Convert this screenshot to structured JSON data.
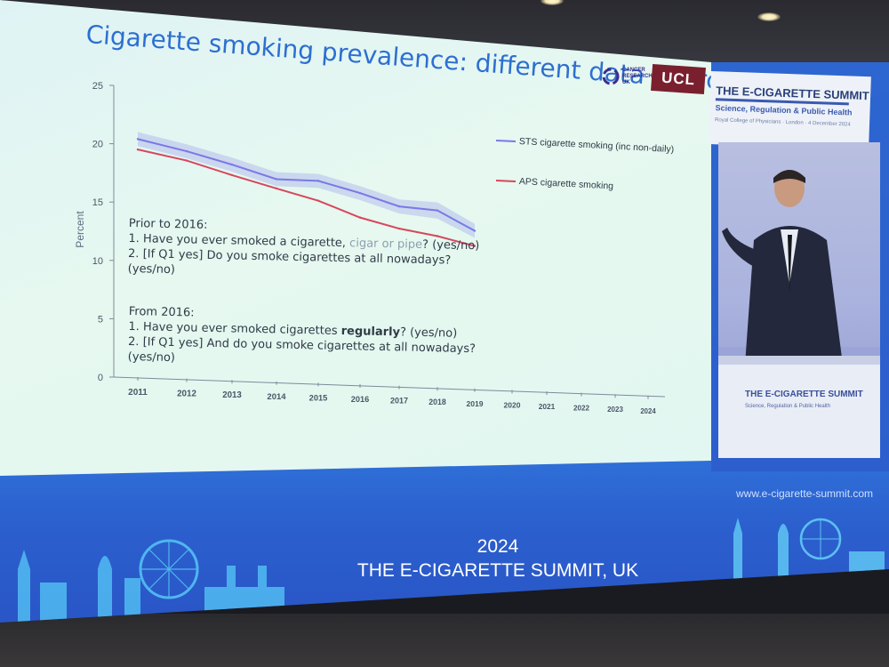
{
  "slide": {
    "title": "Cigarette smoking prevalence: different data sources",
    "questions_prior": {
      "heading": "Prior to 2016:",
      "q1_main": "1. Have you ever smoked a cigarette, ",
      "q1_muted": "cigar or pipe",
      "q1_end": "? (yes/no)",
      "q2_line1": "2. [If Q1 yes] Do you smoke cigarettes at all nowadays?",
      "q2_line2": "(yes/no)"
    },
    "questions_from": {
      "heading": "From 2016:",
      "q1_main": "1. Have you ever smoked cigarettes ",
      "q1_bold": "regularly",
      "q1_end": "? (yes/no)",
      "q2_line1": "2. [If Q1 yes] And do you smoke cigarettes at all nowadays?",
      "q2_line2": "(yes/no)"
    },
    "logos": {
      "cruk_text": "CANCER RESEARCH UK",
      "ucl": "UCL"
    }
  },
  "chart_data": {
    "type": "line",
    "title": "",
    "xlabel": "",
    "ylabel": "Percent",
    "x": [
      2011,
      2012,
      2013,
      2014,
      2015,
      2016,
      2017,
      2018,
      2019,
      2020,
      2021,
      2022,
      2023,
      2024
    ],
    "ylim": [
      0,
      25
    ],
    "yticks": [
      0,
      5,
      10,
      15,
      20,
      25
    ],
    "grid": false,
    "legend_position": "right",
    "series": [
      {
        "name": "STS cigarette smoking (inc non-daily)",
        "color": "#7b78e6",
        "values": [
          20.4,
          19.4,
          18.3,
          17.1,
          17.0,
          16.0,
          14.9,
          14.6,
          12.9,
          null,
          null,
          null,
          null,
          null
        ],
        "band_upper": [
          21.0,
          20.0,
          18.9,
          17.7,
          17.6,
          16.6,
          15.5,
          15.3,
          13.5,
          null,
          null,
          null,
          null,
          null
        ],
        "band_lower": [
          19.8,
          18.8,
          17.7,
          16.5,
          16.4,
          15.4,
          14.3,
          13.9,
          12.3,
          null,
          null,
          null,
          null,
          null
        ]
      },
      {
        "name": "APS cigarette smoking",
        "color": "#d7475c",
        "values": [
          19.5,
          18.6,
          17.4,
          16.3,
          15.3,
          13.9,
          13.0,
          12.4,
          11.6,
          null,
          null,
          null,
          null,
          null
        ]
      }
    ]
  },
  "colors": {
    "title": "#2d6fd1",
    "banner": "#2b5fcd",
    "sts": "#7b78e6",
    "aps": "#d7475c",
    "axis": "#7f8a9a"
  },
  "right_panel": {
    "summit_title": "THE E-CIGARETTE SUMMIT",
    "summit_subtitle": "Science, Regulation & Public Health",
    "summit_venue": "Royal College of Physicians · London · 4 December 2024",
    "podium_title": "THE E-CIGARETTE SUMMIT",
    "podium_subtitle": "Science, Regulation & Public Health"
  },
  "footer": {
    "website": "www.e-cigarette-summit.com",
    "year": "2024",
    "event_name": "THE E-CIGARETTE SUMMIT, UK"
  }
}
